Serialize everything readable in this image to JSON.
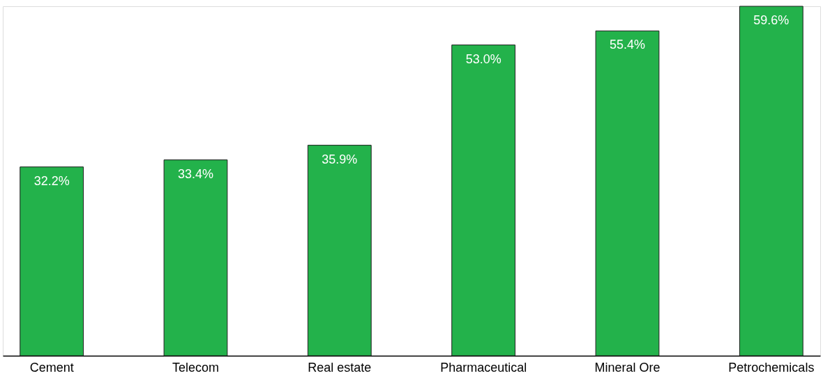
{
  "chart_data": {
    "type": "bar",
    "categories": [
      "Cement",
      "Telecom",
      "Real estate",
      "Pharmaceutical",
      "Mineral Ore",
      "Petrochemicals"
    ],
    "values": [
      32.2,
      33.4,
      35.9,
      53.0,
      55.4,
      59.6
    ],
    "value_labels": [
      "32.2%",
      "33.4%",
      "35.9%",
      "53.0%",
      "55.4%",
      "59.6%"
    ],
    "color": "#23b24b",
    "grid": false
  }
}
